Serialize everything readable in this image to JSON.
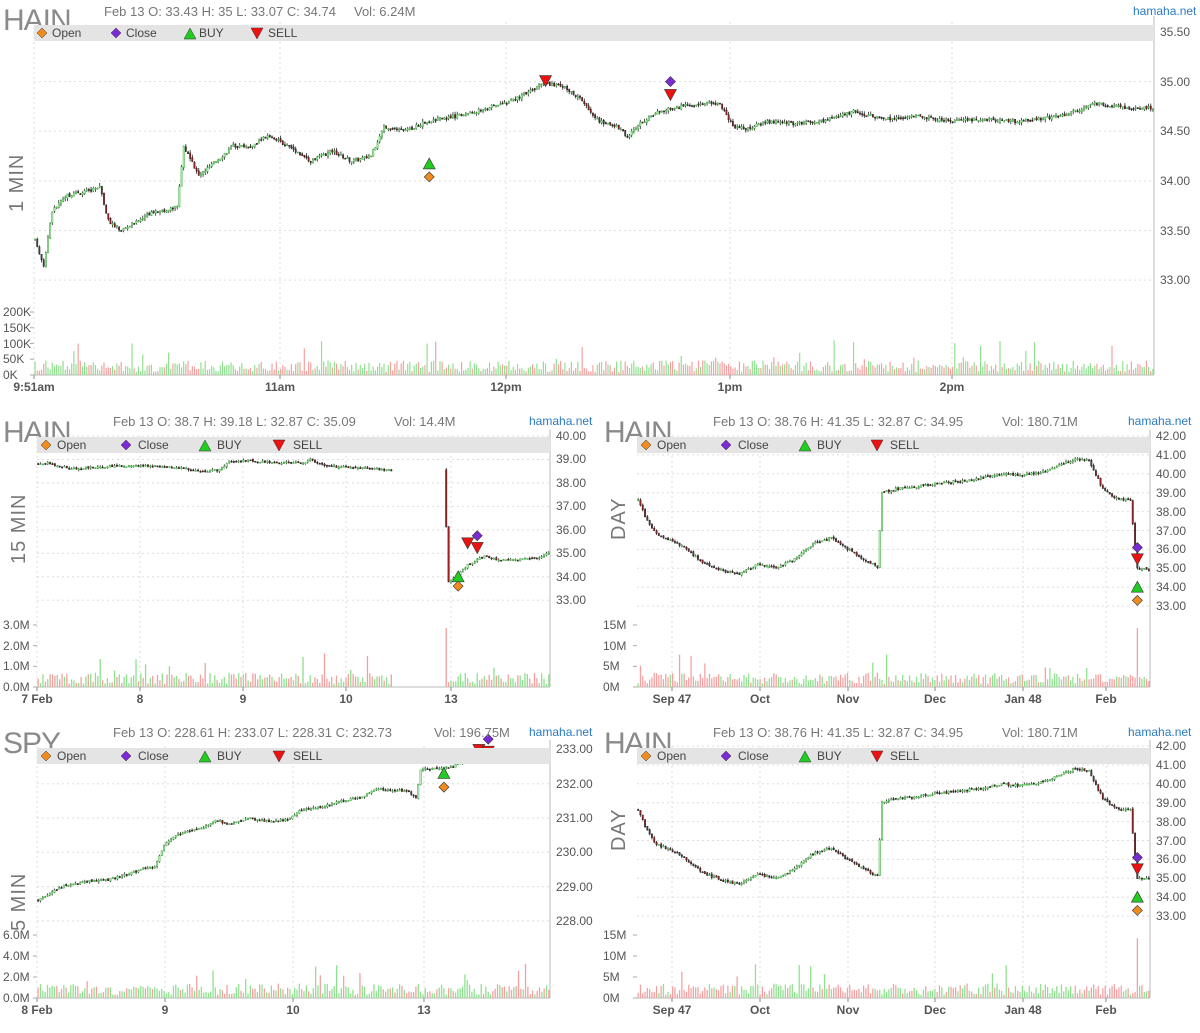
{
  "brand": "hamaha.net",
  "legend": {
    "open": "Open",
    "close": "Close",
    "buy": "BUY",
    "sell": "SELL"
  },
  "colors": {
    "up": "#33aa33",
    "down": "#cc2222",
    "vol_up": "#8fe08f",
    "vol_down": "#f4a0a0",
    "open_marker": "#f08c1e",
    "close_marker": "#7a2bd6",
    "buy_marker": "#22cc22",
    "sell_marker": "#ee1111",
    "legend_bg": "#e4e4e4",
    "grid": "#dddddd",
    "brand": "#2b7bc5"
  },
  "icons": {
    "open": "orange-diamond-icon",
    "close": "purple-diamond-icon",
    "buy": "green-up-triangle-icon",
    "sell": "red-down-triangle-icon"
  },
  "chart_data": [
    {
      "id": "p1",
      "type": "candlestick",
      "symbol": "HAIN",
      "timeframe": "1 MIN",
      "ohlc_text": "Feb 13 O: 33.43 H: 35 L: 33.07 C: 34.74",
      "vol_text": "Vol: 6.24M",
      "ylim": [
        32.8,
        35.6
      ],
      "y_ticks": [
        "33.00",
        "33.50",
        "34.00",
        "34.50",
        "35.00",
        "35.50"
      ],
      "vol_ylim": [
        0,
        200000
      ],
      "vol_ticks": [
        "200K",
        "150K",
        "100K",
        "50K",
        "0K"
      ],
      "x_ticks": [
        "9:51am",
        "11am",
        "12pm",
        "1pm",
        "2pm"
      ],
      "series_anchors": [
        [
          0,
          33.4
        ],
        [
          4,
          33.15
        ],
        [
          8,
          33.7
        ],
        [
          15,
          33.85
        ],
        [
          25,
          33.9
        ],
        [
          30,
          33.95
        ],
        [
          34,
          33.6
        ],
        [
          40,
          33.5
        ],
        [
          48,
          33.6
        ],
        [
          56,
          33.7
        ],
        [
          62,
          33.7
        ],
        [
          66,
          33.75
        ],
        [
          69,
          34.35
        ],
        [
          76,
          34.05
        ],
        [
          84,
          34.2
        ],
        [
          92,
          34.35
        ],
        [
          100,
          34.35
        ],
        [
          108,
          34.45
        ],
        [
          118,
          34.35
        ],
        [
          128,
          34.2
        ],
        [
          138,
          34.3
        ],
        [
          147,
          34.2
        ],
        [
          156,
          34.25
        ],
        [
          162,
          34.55
        ],
        [
          172,
          34.5
        ],
        [
          182,
          34.6
        ],
        [
          195,
          34.65
        ],
        [
          205,
          34.7
        ],
        [
          220,
          34.8
        ],
        [
          228,
          34.88
        ],
        [
          236,
          34.98
        ],
        [
          245,
          34.95
        ],
        [
          252,
          34.85
        ],
        [
          262,
          34.6
        ],
        [
          270,
          34.55
        ],
        [
          275,
          34.45
        ],
        [
          282,
          34.6
        ],
        [
          290,
          34.7
        ],
        [
          300,
          34.75
        ],
        [
          310,
          34.78
        ],
        [
          318,
          34.78
        ],
        [
          324,
          34.55
        ],
        [
          330,
          34.52
        ],
        [
          340,
          34.6
        ],
        [
          352,
          34.58
        ],
        [
          365,
          34.6
        ],
        [
          380,
          34.7
        ],
        [
          395,
          34.62
        ],
        [
          410,
          34.65
        ],
        [
          425,
          34.6
        ],
        [
          440,
          34.62
        ],
        [
          455,
          34.6
        ],
        [
          465,
          34.62
        ],
        [
          475,
          34.65
        ],
        [
          485,
          34.72
        ],
        [
          492,
          34.78
        ],
        [
          502,
          34.75
        ],
        [
          510,
          34.72
        ],
        [
          519,
          34.74
        ]
      ],
      "bars": 520,
      "markers": [
        {
          "type": "buy",
          "i": 183,
          "price": 34.17
        },
        {
          "type": "open",
          "i": 183,
          "price": 34.04
        },
        {
          "type": "sell",
          "i": 237,
          "price": 35.01
        },
        {
          "type": "close",
          "i": 295,
          "price": 35.0
        },
        {
          "type": "sell",
          "i": 295,
          "price": 34.87
        }
      ]
    },
    {
      "id": "p2",
      "type": "candlestick",
      "symbol": "HAIN",
      "timeframe": "15 MIN",
      "ohlc_text": "Feb 13 O: 38.7 H: 39.18 L: 32.87 C: 35.09",
      "vol_text": "Vol: 14.4M",
      "ylim": [
        32.5,
        40.0
      ],
      "y_ticks": [
        "33.00",
        "34.00",
        "35.00",
        "36.00",
        "37.00",
        "38.00",
        "39.00",
        "40.00"
      ],
      "vol_ylim": [
        0,
        3000000
      ],
      "vol_ticks": [
        "3.0M",
        "2.0M",
        "1.0M",
        "0.0M"
      ],
      "x_ticks": [
        "7 Feb",
        "8",
        "9",
        "10",
        "13"
      ],
      "series_anchors": [
        [
          0,
          38.8
        ],
        [
          4,
          38.85
        ],
        [
          8,
          38.75
        ],
        [
          14,
          38.6
        ],
        [
          20,
          38.65
        ],
        [
          30,
          38.7
        ],
        [
          40,
          38.75
        ],
        [
          52,
          38.7
        ],
        [
          62,
          38.6
        ],
        [
          70,
          38.5
        ],
        [
          76,
          38.55
        ],
        [
          80,
          38.9
        ],
        [
          86,
          38.95
        ],
        [
          96,
          38.9
        ],
        [
          106,
          38.85
        ],
        [
          112,
          38.85
        ],
        [
          114,
          39.0
        ],
        [
          118,
          38.8
        ],
        [
          124,
          38.7
        ],
        [
          132,
          38.65
        ],
        [
          140,
          38.6
        ],
        [
          148,
          38.55
        ],
        [
          160,
          38.55
        ],
        [
          170,
          38.55
        ],
        [
          172,
          33.8
        ],
        [
          176,
          34.1
        ],
        [
          180,
          34.5
        ],
        [
          184,
          34.75
        ],
        [
          188,
          34.9
        ],
        [
          192,
          34.7
        ],
        [
          198,
          34.7
        ],
        [
          204,
          34.75
        ],
        [
          210,
          34.8
        ],
        [
          214,
          35.09
        ]
      ],
      "gap_at": [
        148,
        171
      ],
      "bars": 215,
      "volume_spike_at": 171,
      "markers": [
        {
          "type": "buy",
          "i": 176,
          "price": 34.0
        },
        {
          "type": "open",
          "i": 176,
          "price": 33.6
        },
        {
          "type": "sell",
          "i": 180,
          "price": 35.45
        },
        {
          "type": "close",
          "i": 184,
          "price": 35.75
        },
        {
          "type": "sell",
          "i": 184,
          "price": 35.25
        }
      ]
    },
    {
      "id": "p3",
      "type": "candlestick",
      "symbol": "HAIN",
      "timeframe": "DAY",
      "ohlc_text": "Feb 13 O: 38.76 H: 41.35 L: 32.87 C: 34.95",
      "vol_text": "Vol: 180.71M",
      "ylim": [
        32.0,
        42.0
      ],
      "y_ticks": [
        "33.00",
        "34.00",
        "35.00",
        "36.00",
        "37.00",
        "38.00",
        "39.00",
        "40.00",
        "41.00",
        "42.00"
      ],
      "vol_ylim": [
        0,
        20000000
      ],
      "vol_ticks": [
        "15M",
        "10M",
        "5M",
        "0M"
      ],
      "x_ticks": [
        "Sep 47",
        "Oct",
        "Nov",
        "Dec",
        "Jan 48",
        "Feb"
      ],
      "series_anchors": [
        [
          0,
          38.6
        ],
        [
          4,
          37.5
        ],
        [
          8,
          36.8
        ],
        [
          14,
          36.5
        ],
        [
          20,
          36.1
        ],
        [
          28,
          35.3
        ],
        [
          36,
          34.9
        ],
        [
          44,
          34.7
        ],
        [
          52,
          35.2
        ],
        [
          60,
          35.0
        ],
        [
          68,
          35.5
        ],
        [
          76,
          36.3
        ],
        [
          84,
          36.6
        ],
        [
          90,
          36.1
        ],
        [
          98,
          35.5
        ],
        [
          104,
          35.1
        ],
        [
          106,
          39.0
        ],
        [
          112,
          39.2
        ],
        [
          120,
          39.3
        ],
        [
          130,
          39.5
        ],
        [
          140,
          39.6
        ],
        [
          150,
          39.8
        ],
        [
          158,
          40.0
        ],
        [
          166,
          39.9
        ],
        [
          176,
          40.1
        ],
        [
          184,
          40.5
        ],
        [
          190,
          40.8
        ],
        [
          196,
          40.7
        ],
        [
          202,
          39.2
        ],
        [
          208,
          38.7
        ],
        [
          214,
          38.6
        ],
        [
          217,
          35.0
        ],
        [
          222,
          34.95
        ]
      ],
      "gap_at": [
        216,
        216
      ],
      "bars": 223,
      "volume_spike_at": 217,
      "markers": [
        {
          "type": "buy",
          "i": 217,
          "price": 34.0
        },
        {
          "type": "open",
          "i": 217,
          "price": 33.3
        },
        {
          "type": "close",
          "i": 217,
          "price": 36.1
        },
        {
          "type": "sell",
          "i": 217,
          "price": 35.5
        }
      ]
    },
    {
      "id": "p4",
      "type": "candlestick",
      "symbol": "SPY",
      "timeframe": "5 MIN",
      "ohlc_text": "Feb 13 O: 228.61 H: 233.07 L: 228.31 C: 232.73",
      "vol_text": "Vol: 196.75M",
      "ylim": [
        227.5,
        233.1
      ],
      "y_ticks": [
        "228.00",
        "229.00",
        "230.00",
        "231.00",
        "232.00",
        "233.00"
      ],
      "vol_ylim": [
        0,
        6000000
      ],
      "vol_ticks": [
        "6.0M",
        "4.0M",
        "2.0M",
        "0.0M"
      ],
      "x_ticks": [
        "8 Feb",
        "9",
        "10",
        "13"
      ],
      "series_anchors": [
        [
          0,
          228.6
        ],
        [
          10,
          229.0
        ],
        [
          20,
          229.15
        ],
        [
          30,
          229.2
        ],
        [
          40,
          229.4
        ],
        [
          50,
          229.6
        ],
        [
          55,
          230.3
        ],
        [
          62,
          230.6
        ],
        [
          70,
          230.7
        ],
        [
          76,
          230.95
        ],
        [
          82,
          230.8
        ],
        [
          90,
          231.0
        ],
        [
          100,
          230.9
        ],
        [
          108,
          231.0
        ],
        [
          112,
          231.2
        ],
        [
          120,
          231.3
        ],
        [
          130,
          231.5
        ],
        [
          138,
          231.6
        ],
        [
          146,
          231.85
        ],
        [
          152,
          231.8
        ],
        [
          158,
          231.8
        ],
        [
          162,
          231.6
        ],
        [
          164,
          232.4
        ],
        [
          170,
          232.45
        ],
        [
          178,
          232.5
        ],
        [
          186,
          232.8
        ],
        [
          192,
          233.0
        ],
        [
          200,
          232.9
        ],
        [
          210,
          232.8
        ],
        [
          218,
          232.7
        ]
      ],
      "gap_at": [
        162,
        163
      ],
      "bars": 220,
      "markers": [
        {
          "type": "buy",
          "i": 174,
          "price": 232.3
        },
        {
          "type": "open",
          "i": 174,
          "price": 231.9
        },
        {
          "type": "sell",
          "i": 189,
          "price": 233.0
        },
        {
          "type": "close",
          "i": 193,
          "price": 233.3
        },
        {
          "type": "sell",
          "i": 193,
          "price": 232.95
        }
      ]
    },
    {
      "id": "p5",
      "type": "candlestick",
      "symbol": "HAIN",
      "timeframe": "DAY",
      "ohlc_text": "Feb 13 O: 38.76 H: 41.35 L: 32.87 C: 34.95",
      "vol_text": "Vol: 180.71M",
      "ylim": [
        32.0,
        42.0
      ],
      "y_ticks": [
        "33.00",
        "34.00",
        "35.00",
        "36.00",
        "37.00",
        "38.00",
        "39.00",
        "40.00",
        "41.00",
        "42.00"
      ],
      "vol_ylim": [
        0,
        20000000
      ],
      "vol_ticks": [
        "15M",
        "10M",
        "5M",
        "0M"
      ],
      "x_ticks": [
        "Sep 47",
        "Oct",
        "Nov",
        "Dec",
        "Jan 48",
        "Feb"
      ],
      "series_anchors": [
        [
          0,
          38.6
        ],
        [
          4,
          37.5
        ],
        [
          8,
          36.8
        ],
        [
          14,
          36.5
        ],
        [
          20,
          36.1
        ],
        [
          28,
          35.3
        ],
        [
          36,
          34.9
        ],
        [
          44,
          34.7
        ],
        [
          52,
          35.2
        ],
        [
          60,
          35.0
        ],
        [
          68,
          35.5
        ],
        [
          76,
          36.3
        ],
        [
          84,
          36.6
        ],
        [
          90,
          36.1
        ],
        [
          98,
          35.5
        ],
        [
          104,
          35.1
        ],
        [
          106,
          39.0
        ],
        [
          112,
          39.2
        ],
        [
          120,
          39.3
        ],
        [
          130,
          39.5
        ],
        [
          140,
          39.6
        ],
        [
          150,
          39.8
        ],
        [
          158,
          40.0
        ],
        [
          166,
          39.9
        ],
        [
          176,
          40.1
        ],
        [
          184,
          40.5
        ],
        [
          190,
          40.8
        ],
        [
          196,
          40.7
        ],
        [
          202,
          39.2
        ],
        [
          208,
          38.7
        ],
        [
          214,
          38.6
        ],
        [
          217,
          35.0
        ],
        [
          222,
          34.95
        ]
      ],
      "gap_at": [
        216,
        216
      ],
      "bars": 223,
      "volume_spike_at": 217,
      "markers": [
        {
          "type": "buy",
          "i": 217,
          "price": 34.0
        },
        {
          "type": "open",
          "i": 217,
          "price": 33.3
        },
        {
          "type": "close",
          "i": 217,
          "price": 36.1
        },
        {
          "type": "sell",
          "i": 217,
          "price": 35.5
        }
      ]
    }
  ]
}
